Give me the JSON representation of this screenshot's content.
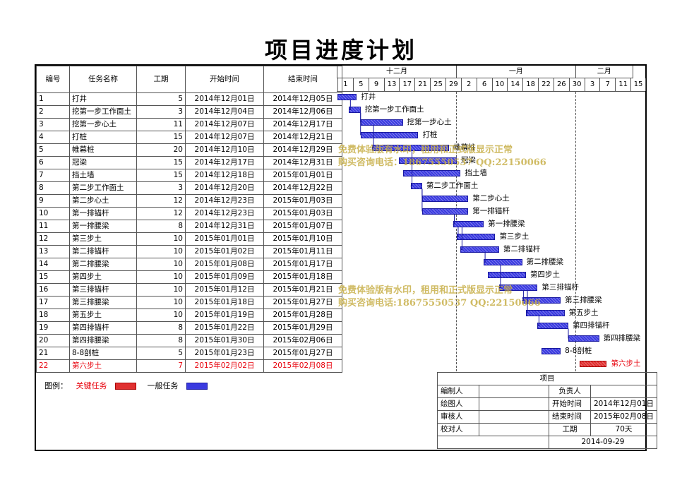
{
  "title": "项目进度计划",
  "columns": {
    "id": "编号",
    "name": "任务名称",
    "duration": "工期",
    "start": "开始时间",
    "end": "结束时间"
  },
  "months": [
    "十二月",
    "一月",
    "二月"
  ],
  "days": [
    "1",
    "5",
    "9",
    "13",
    "17",
    "21",
    "25",
    "29",
    "2",
    "6",
    "10",
    "14",
    "18",
    "22",
    "26",
    "30",
    "3",
    "7",
    "11",
    "15"
  ],
  "tasks": [
    {
      "id": "1",
      "name": "打井",
      "duration": "5",
      "start": "2014年12月01日",
      "end": "2014年12月05日",
      "s": 0,
      "d": 5,
      "critical": false
    },
    {
      "id": "2",
      "name": "挖第一步工作面土",
      "duration": "3",
      "start": "2014年12月04日",
      "end": "2014年12月06日",
      "s": 3,
      "d": 3,
      "critical": false
    },
    {
      "id": "3",
      "name": "挖第一步心土",
      "duration": "11",
      "start": "2014年12月07日",
      "end": "2014年12月17日",
      "s": 6,
      "d": 11,
      "critical": false
    },
    {
      "id": "4",
      "name": "打桩",
      "duration": "15",
      "start": "2014年12月07日",
      "end": "2014年12月21日",
      "s": 6,
      "d": 15,
      "critical": false
    },
    {
      "id": "5",
      "name": "帷幕桩",
      "duration": "20",
      "start": "2014年12月10日",
      "end": "2014年12月29日",
      "s": 9,
      "d": 20,
      "critical": false
    },
    {
      "id": "6",
      "name": "冠梁",
      "duration": "15",
      "start": "2014年12月17日",
      "end": "2014年12月31日",
      "s": 16,
      "d": 15,
      "critical": false
    },
    {
      "id": "7",
      "name": "挡土墙",
      "duration": "15",
      "start": "2014年12月18日",
      "end": "2015年01月01日",
      "s": 17,
      "d": 15,
      "critical": false
    },
    {
      "id": "8",
      "name": "第二步工作面土",
      "duration": "3",
      "start": "2014年12月20日",
      "end": "2014年12月22日",
      "s": 19,
      "d": 3,
      "critical": false
    },
    {
      "id": "9",
      "name": "第二步心土",
      "duration": "12",
      "start": "2014年12月23日",
      "end": "2015年01月03日",
      "s": 22,
      "d": 12,
      "critical": false
    },
    {
      "id": "10",
      "name": "第一排锚杆",
      "duration": "12",
      "start": "2014年12月23日",
      "end": "2015年01月03日",
      "s": 22,
      "d": 12,
      "critical": false
    },
    {
      "id": "11",
      "name": "第一排腰梁",
      "duration": "8",
      "start": "2014年12月31日",
      "end": "2015年01月07日",
      "s": 30,
      "d": 8,
      "critical": false
    },
    {
      "id": "12",
      "name": "第三步土",
      "duration": "10",
      "start": "2015年01月01日",
      "end": "2015年01月10日",
      "s": 31,
      "d": 10,
      "critical": false
    },
    {
      "id": "13",
      "name": "第二排锚杆",
      "duration": "10",
      "start": "2015年01月02日",
      "end": "2015年01月11日",
      "s": 32,
      "d": 10,
      "critical": false
    },
    {
      "id": "14",
      "name": "第二排腰梁",
      "duration": "10",
      "start": "2015年01月08日",
      "end": "2015年01月17日",
      "s": 38,
      "d": 10,
      "critical": false
    },
    {
      "id": "15",
      "name": "第四步土",
      "duration": "10",
      "start": "2015年01月09日",
      "end": "2015年01月18日",
      "s": 39,
      "d": 10,
      "critical": false
    },
    {
      "id": "16",
      "name": "第三排锚杆",
      "duration": "10",
      "start": "2015年01月12日",
      "end": "2015年01月21日",
      "s": 42,
      "d": 10,
      "critical": false
    },
    {
      "id": "17",
      "name": "第三排腰梁",
      "duration": "10",
      "start": "2015年01月18日",
      "end": "2015年01月27日",
      "s": 48,
      "d": 10,
      "critical": false
    },
    {
      "id": "18",
      "name": "第五步土",
      "duration": "10",
      "start": "2015年01月19日",
      "end": "2015年01月28日",
      "s": 49,
      "d": 10,
      "critical": false
    },
    {
      "id": "19",
      "name": "第四排锚杆",
      "duration": "8",
      "start": "2015年01月22日",
      "end": "2015年01月29日",
      "s": 52,
      "d": 8,
      "critical": false
    },
    {
      "id": "20",
      "name": "第四排腰梁",
      "duration": "8",
      "start": "2015年01月30日",
      "end": "2015年02月06日",
      "s": 60,
      "d": 8,
      "critical": false
    },
    {
      "id": "21",
      "name": "8-8剖桩",
      "duration": "5",
      "start": "2015年01月23日",
      "end": "2015年01月27日",
      "s": 53,
      "d": 5,
      "critical": false
    },
    {
      "id": "22",
      "name": "第六步土",
      "duration": "7",
      "start": "2015年02月02日",
      "end": "2015年02月08日",
      "s": 63,
      "d": 7,
      "critical": true
    }
  ],
  "watermarks": [
    "免费体验版有水印，租用和正式版显示正常",
    "购买咨询电话：18675550537  QQ:22150066",
    "免费体验版有水印，租用和正式版显示正常",
    "购买咨询电话:18675550537 QQ:22150066"
  ],
  "legend": {
    "label": "图例：",
    "critical": "关键任务",
    "normal": "一般任务"
  },
  "info": {
    "project_label": "项目",
    "editor": "编制人",
    "owner": "负责人",
    "drawer": "绘图人",
    "start_label": "开始时间",
    "start_value": "2014年12月01日",
    "reviewer": "审核人",
    "end_label": "结束时间",
    "end_value": "2015年02月08日",
    "checker": "校对人",
    "duration_label": "工期",
    "duration_value": "70天",
    "date": "2014-09-29"
  },
  "colors": {
    "normal_bar": "#3a3ae0",
    "critical_bar": "#e03030",
    "critical_text": "#e8000b",
    "watermark": "#c8b04a"
  }
}
